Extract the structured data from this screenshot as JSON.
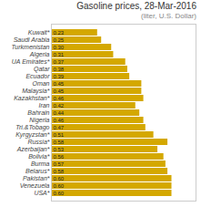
{
  "chart_data": {
    "type": "bar",
    "orientation": "horizontal",
    "title": "Gasoline prices, 28-Mar-2016",
    "subtitle": "(liter, U.S. Dollar)",
    "categories": [
      "Kuwait*",
      "Saudi Arabia",
      "Turkmenistan",
      "Algeria",
      "UA Emirates*",
      "Qatar",
      "Ecuador",
      "Oman",
      "Malaysia*",
      "Kazakhstan*",
      "Iran",
      "Bahrain",
      "Nigeria",
      "Tri.&Tobago",
      "Kyrgyzstan*",
      "Russia*",
      "Azerbaijan*",
      "Bolivia*",
      "Burma",
      "Belarus*",
      "Pakistan*",
      "Venezuela",
      "USA*"
    ],
    "values": [
      0.23,
      0.25,
      0.3,
      0.31,
      0.37,
      0.38,
      0.39,
      0.45,
      0.45,
      0.46,
      0.42,
      0.44,
      0.46,
      0.47,
      0.51,
      0.58,
      0.53,
      0.56,
      0.57,
      0.58,
      0.6,
      0.6,
      0.6
    ],
    "value_labels": [
      "0.23",
      "0.25",
      "0.30",
      "0.31",
      "0.37",
      "0.38",
      "0.39",
      "0.45",
      "0.45",
      "0.46",
      "0.42",
      "0.44",
      "0.46",
      "0.47",
      "0.51",
      "0.58",
      "0.53",
      "0.56",
      "0.57",
      "0.58",
      "0.60",
      "0.60",
      "0.60"
    ],
    "data_labels": true,
    "color": "#D4A800",
    "xlim": [
      0,
      0.72
    ],
    "tick_labels": "y"
  }
}
